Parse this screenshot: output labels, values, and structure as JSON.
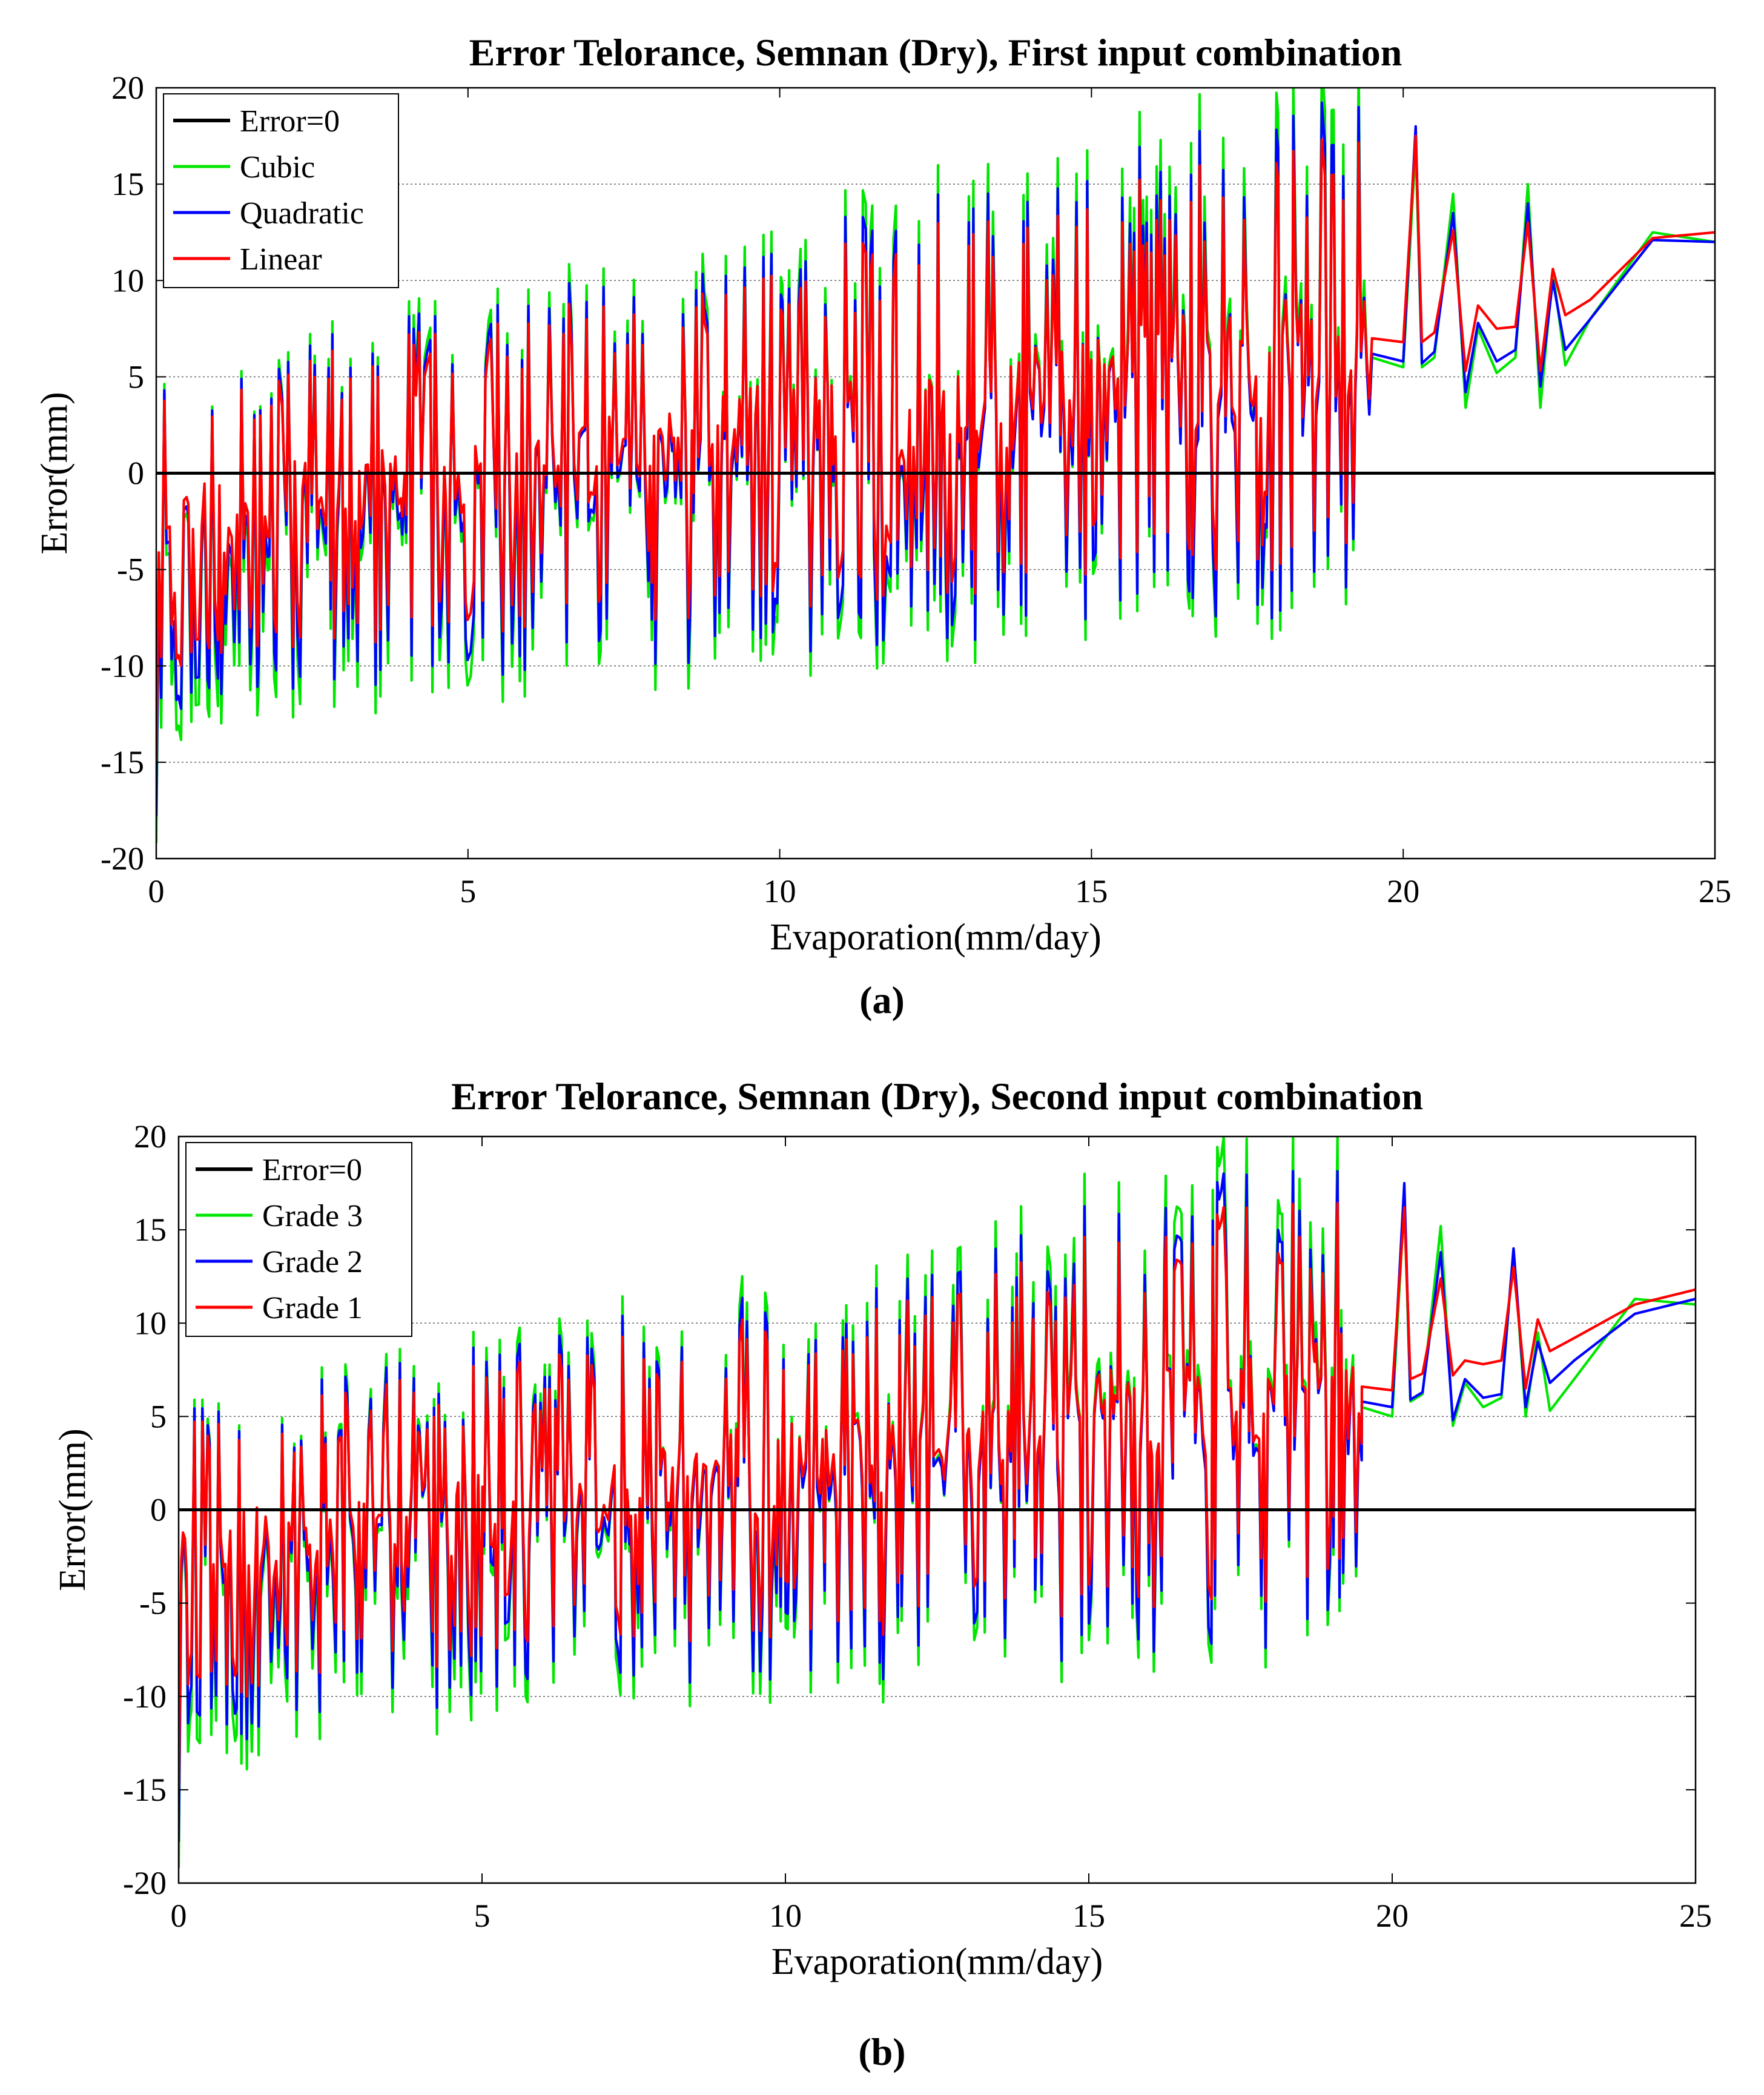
{
  "panels": [
    {
      "caption": "(a)",
      "chart_data": {
        "type": "line",
        "title": "Error Telorance, Semnan (Dry), First input combination",
        "xlabel": "Evaporation(mm/day)",
        "ylabel": "Error(mm)",
        "xlim": [
          0,
          25
        ],
        "ylim": [
          -20,
          20
        ],
        "xticks": [
          0,
          5,
          10,
          15,
          20,
          25
        ],
        "yticks": [
          -20,
          -15,
          -10,
          -5,
          0,
          5,
          10,
          15,
          20
        ],
        "gridlines": [
          -15,
          -10,
          -5,
          5,
          10,
          15
        ],
        "legend_position": "top-left",
        "series": [
          {
            "name": "Error=0",
            "color": "#000000"
          },
          {
            "name": "Cubic",
            "color": "#00e600"
          },
          {
            "name": "Quadratic",
            "color": "#0000ff"
          },
          {
            "name": "Linear",
            "color": "#ff0000"
          }
        ],
        "tail": {
          "x": [
            19.5,
            20.0,
            20.2,
            20.3,
            20.5,
            20.8,
            21.0,
            21.2,
            21.5,
            21.8,
            22.0,
            22.2,
            22.4,
            22.6,
            23.0,
            24.0,
            25.0
          ],
          "Cubic": [
            6.0,
            5.5,
            17.0,
            5.5,
            6.0,
            14.5,
            3.4,
            7.5,
            5.2,
            6.0,
            15.0,
            3.4,
            10.5,
            5.6,
            8.0,
            12.5,
            12.0
          ],
          "Quadratic": [
            6.2,
            5.8,
            18.0,
            5.7,
            6.3,
            13.5,
            4.2,
            7.8,
            5.8,
            6.4,
            14.0,
            4.5,
            10.0,
            6.4,
            8.0,
            12.1,
            12.0
          ],
          "Linear": [
            7.0,
            6.8,
            17.5,
            6.8,
            7.3,
            12.6,
            5.3,
            8.7,
            7.5,
            7.6,
            13.0,
            5.3,
            10.6,
            8.2,
            9.0,
            12.2,
            12.5
          ]
        }
      }
    },
    {
      "caption": "(b)",
      "chart_data": {
        "type": "line",
        "title": "Error Telorance, Semnan (Dry), Second input combination",
        "xlabel": "Evaporation(mm/day)",
        "ylabel": "Error(mm)",
        "xlim": [
          0,
          25
        ],
        "ylim": [
          -20,
          20
        ],
        "xticks": [
          0,
          5,
          10,
          15,
          20,
          25
        ],
        "yticks": [
          -20,
          -15,
          -10,
          -5,
          0,
          5,
          10,
          15,
          20
        ],
        "gridlines": [
          -10,
          5,
          10
        ],
        "legend_position": "top-left",
        "series": [
          {
            "name": "Error=0",
            "color": "#000000"
          },
          {
            "name": "Grade 3",
            "color": "#00e600"
          },
          {
            "name": "Grade 2",
            "color": "#0000ff"
          },
          {
            "name": "Grade 1",
            "color": "#ff0000"
          }
        ],
        "tail": {
          "x": [
            19.5,
            20.0,
            20.2,
            20.3,
            20.5,
            20.8,
            21.0,
            21.2,
            21.5,
            21.8,
            22.0,
            22.2,
            22.4,
            22.6,
            23.0,
            24.0,
            25.0
          ],
          "Grade 3": [
            5.5,
            5.0,
            16.5,
            5.8,
            6.2,
            15.2,
            4.5,
            6.8,
            5.5,
            6.0,
            14.0,
            5.0,
            9.5,
            5.3,
            7.0,
            11.3,
            11.0
          ],
          "Grade 2": [
            5.8,
            5.5,
            17.5,
            5.9,
            6.3,
            13.8,
            4.8,
            7.0,
            6.0,
            6.2,
            14.0,
            5.5,
            9.0,
            6.8,
            8.0,
            10.5,
            11.3
          ],
          "Grade 1": [
            6.6,
            6.4,
            16.2,
            7.0,
            7.3,
            12.4,
            7.2,
            8.0,
            7.8,
            8.0,
            13.0,
            6.5,
            10.2,
            8.5,
            9.2,
            11.0,
            11.8
          ]
        }
      }
    }
  ]
}
